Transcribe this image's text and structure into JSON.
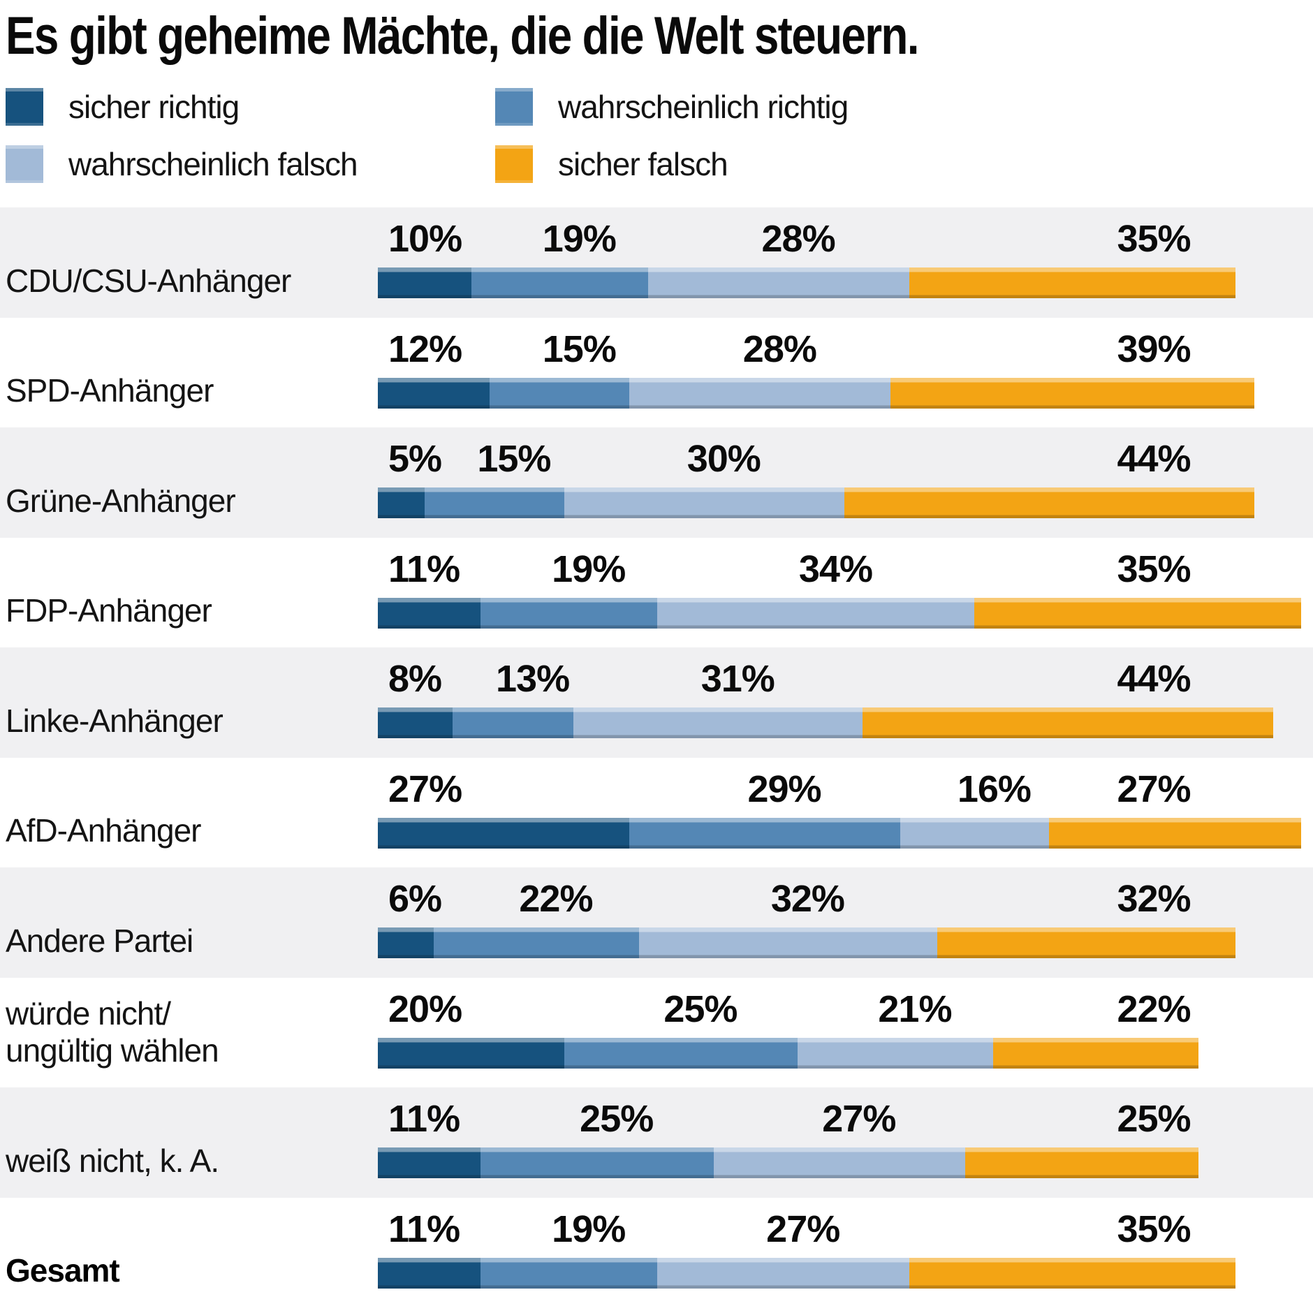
{
  "title": "Es gibt geheime Mächte, die die Welt steuern.",
  "legend": {
    "items": [
      {
        "label": "sicher richtig",
        "color": "#16527e"
      },
      {
        "label": "wahrscheinlich richtig",
        "color": "#5487b5"
      },
      {
        "label": "wahrscheinlich falsch",
        "color": "#a2bad7"
      },
      {
        "label": "sicher falsch",
        "color": "#f3a414"
      }
    ]
  },
  "chart_data": {
    "type": "bar",
    "orientation": "horizontal",
    "stacked": true,
    "value_unit": "%",
    "xlim": [
      0,
      100
    ],
    "grid": false,
    "legend_position": "top",
    "categories": [
      {
        "label": "CDU/CSU-Anhänger",
        "lines": [
          "CDU/CSU-Anhänger"
        ],
        "bold": false
      },
      {
        "label": "SPD-Anhänger",
        "lines": [
          "SPD-Anhänger"
        ],
        "bold": false
      },
      {
        "label": "Grüne-Anhänger",
        "lines": [
          "Grüne-Anhänger"
        ],
        "bold": false
      },
      {
        "label": "FDP-Anhänger",
        "lines": [
          "FDP-Anhänger"
        ],
        "bold": false
      },
      {
        "label": "Linke-Anhänger",
        "lines": [
          "Linke-Anhänger"
        ],
        "bold": false
      },
      {
        "label": "AfD-Anhänger",
        "lines": [
          "AfD-Anhänger"
        ],
        "bold": false
      },
      {
        "label": "Andere Partei",
        "lines": [
          "Andere Partei"
        ],
        "bold": false
      },
      {
        "label": "würde nicht/ungültig wählen",
        "lines": [
          "würde nicht/",
          "ungültig wählen"
        ],
        "bold": false
      },
      {
        "label": "weiß nicht, k. A.",
        "lines": [
          "weiß nicht, k. A."
        ],
        "bold": false
      },
      {
        "label": "Gesamt",
        "lines": [
          "Gesamt"
        ],
        "bold": true
      }
    ],
    "series": [
      {
        "name": "sicher richtig",
        "color": "#16527e",
        "values": [
          10,
          12,
          5,
          11,
          8,
          27,
          6,
          20,
          11,
          11
        ]
      },
      {
        "name": "wahrscheinlich richtig",
        "color": "#5487b5",
        "values": [
          19,
          15,
          15,
          19,
          13,
          29,
          22,
          25,
          25,
          19
        ]
      },
      {
        "name": "wahrscheinlich falsch",
        "color": "#a2bad7",
        "values": [
          28,
          28,
          30,
          34,
          31,
          16,
          32,
          21,
          27,
          27
        ]
      },
      {
        "name": "sicher falsch",
        "color": "#f3a414",
        "values": [
          35,
          39,
          44,
          35,
          44,
          27,
          32,
          22,
          25,
          35
        ]
      }
    ]
  }
}
